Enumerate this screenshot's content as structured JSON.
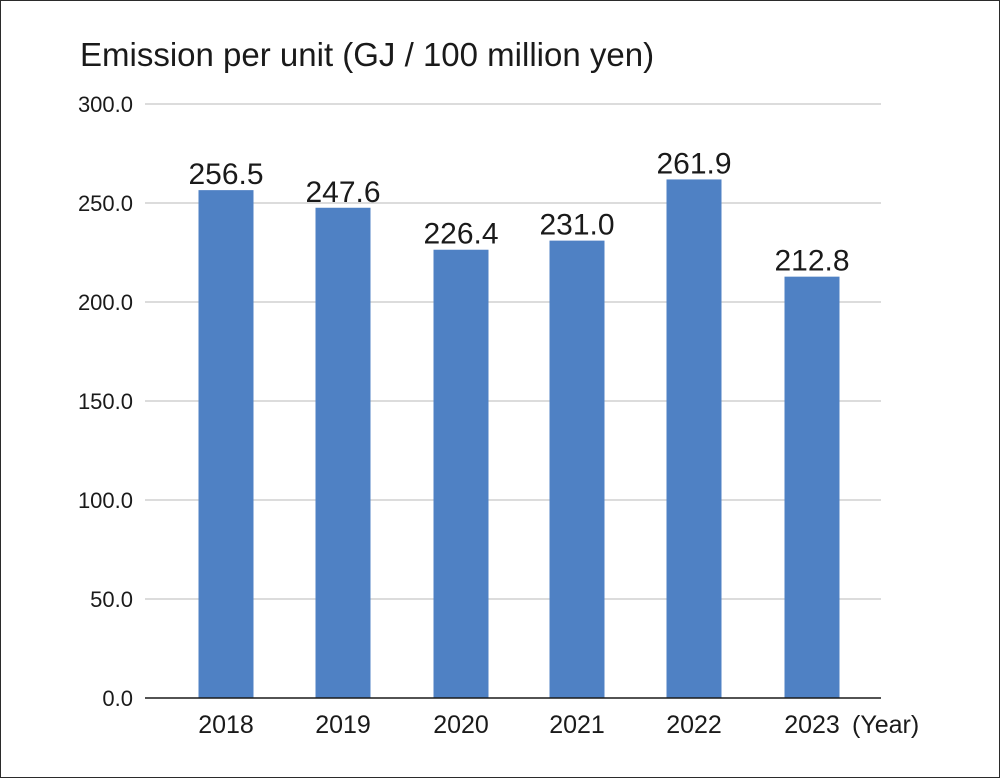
{
  "chart_data": {
    "type": "bar",
    "title": "Emission per unit (GJ / 100 million yen)",
    "xlabel": "(Year)",
    "ylabel": "",
    "categories": [
      "2018",
      "2019",
      "2020",
      "2021",
      "2022",
      "2023"
    ],
    "values": [
      256.5,
      247.6,
      226.4,
      231.0,
      261.9,
      212.8
    ],
    "data_labels": [
      "256.5",
      "247.6",
      "226.4",
      "231.0",
      "261.9",
      "212.8"
    ],
    "ylim": [
      0,
      300
    ],
    "yticks": [
      "0.0",
      "50.0",
      "100.0",
      "150.0",
      "200.0",
      "250.0",
      "300.0"
    ],
    "grid": true,
    "bar_color": "#4f81c4",
    "grid_color": "#c8c8c8"
  }
}
